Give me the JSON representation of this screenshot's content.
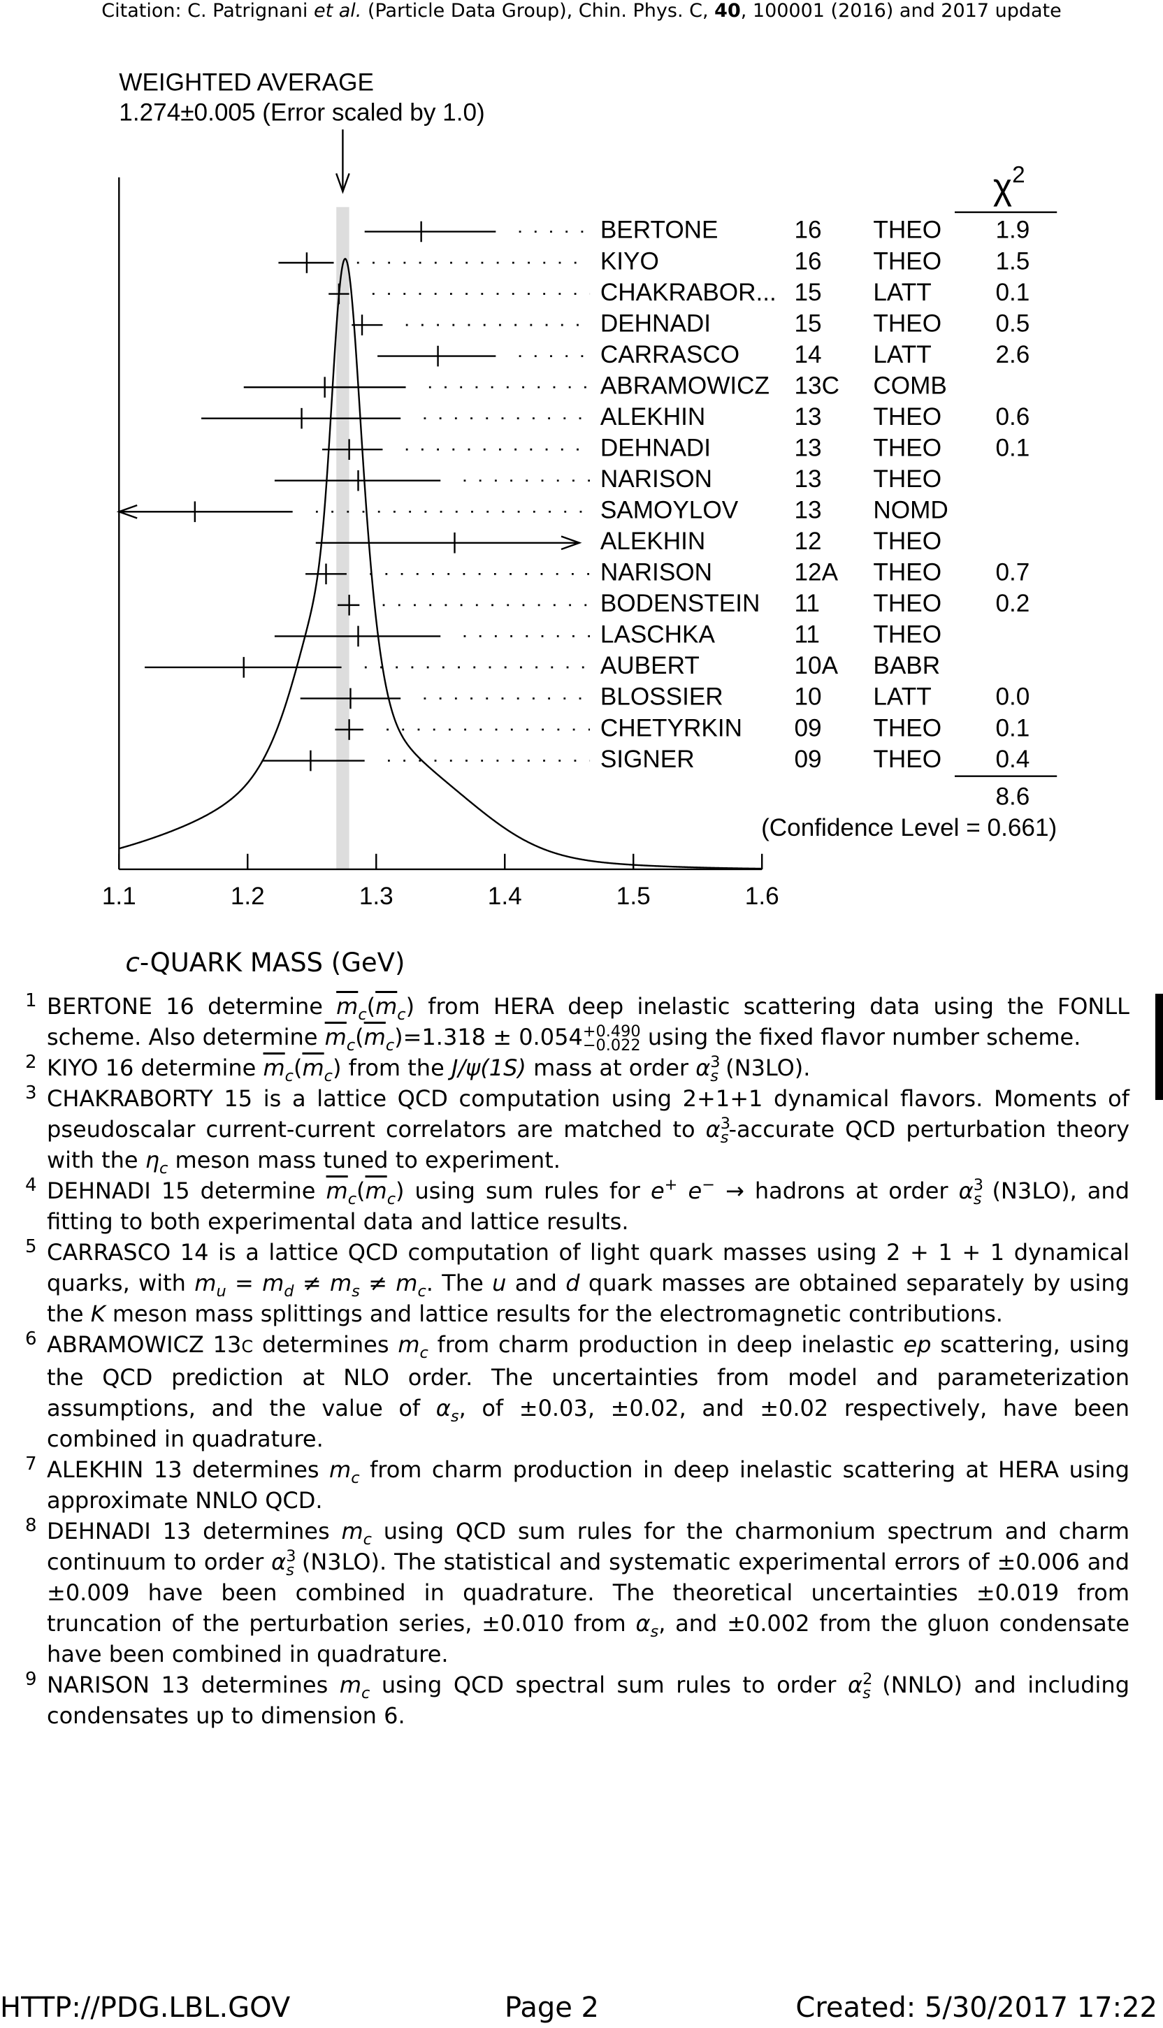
{
  "header": {
    "citation": [
      {
        "t": "Citation: C. Patrignani "
      },
      {
        "t": "et al.",
        "s": "i"
      },
      {
        "t": " (Particle Data Group), Chin. Phys. C, "
      },
      {
        "t": "40",
        "s": "b"
      },
      {
        "t": ", 100001 (2016) and 2017 update"
      }
    ]
  },
  "chart_data": {
    "type": "ideogram",
    "title": "WEIGHTED AVERAGE",
    "subtitle": "1.274±0.005 (Error scaled by 1.0)",
    "average": 1.274,
    "average_error": 0.005,
    "x_label_italic": "c",
    "x_label": "-QUARK MASS (GeV)",
    "xlim": [
      1.1,
      1.6
    ],
    "xticks": [
      1.1,
      1.2,
      1.3,
      1.4,
      1.5,
      1.6
    ],
    "chi2_symbol": "χ",
    "chi2_power": "2",
    "categories": [
      "BERTONE",
      "KIYO",
      "CHAKRABOR...",
      "DEHNADI",
      "CARRASCO",
      "ABRAMOWICZ",
      "ALEKHIN",
      "DEHNADI",
      "NARISON",
      "SAMOYLOV",
      "ALEKHIN",
      "NARISON",
      "BODENSTEIN",
      "LASCHKA",
      "AUBERT",
      "BLOSSIER",
      "CHETYRKIN",
      "SIGNER"
    ],
    "years": [
      "16",
      "16",
      "15",
      "15",
      "14",
      "13C",
      "13",
      "13",
      "13",
      "13",
      "12",
      "12A",
      "11",
      "11",
      "10A",
      "10",
      "09",
      "09"
    ],
    "methods": [
      "THEO",
      "THEO",
      "LATT",
      "THEO",
      "LATT",
      "COMB",
      "THEO",
      "THEO",
      "THEO",
      "NOMD",
      "THEO",
      "THEO",
      "THEO",
      "THEO",
      "BABR",
      "LATT",
      "THEO",
      "THEO"
    ],
    "chi2": [
      "1.9",
      "1.5",
      "0.1",
      "0.5",
      "2.6",
      null,
      "0.6",
      "0.1",
      null,
      null,
      null,
      "0.7",
      "0.2",
      null,
      null,
      "0.0",
      "0.1",
      "0.4"
    ],
    "chi2_total": "8.6",
    "confidence": "(Confidence Level = 0.661)",
    "values": [
      1.335,
      1.246,
      1.271,
      1.289,
      1.348,
      1.26,
      1.242,
      1.279,
      1.286,
      1.159,
      1.361,
      1.261,
      1.279,
      1.286,
      1.197,
      1.28,
      1.279,
      1.249
    ],
    "lower": [
      1.291,
      1.224,
      1.263,
      1.281,
      1.301,
      1.197,
      1.164,
      1.258,
      1.221,
      1.1,
      1.253,
      1.245,
      1.27,
      1.221,
      1.12,
      1.241,
      1.268,
      1.211
    ],
    "upper": [
      1.393,
      1.267,
      1.279,
      1.305,
      1.393,
      1.323,
      1.319,
      1.305,
      1.35,
      1.235,
      1.458,
      1.277,
      1.287,
      1.35,
      1.273,
      1.319,
      1.29,
      1.291
    ],
    "arrows": [
      null,
      null,
      null,
      null,
      null,
      null,
      null,
      null,
      null,
      "left",
      "right",
      null,
      null,
      null,
      null,
      null,
      null,
      null
    ],
    "band_color": "#dddddd"
  },
  "footnotes": [
    {
      "number": "1",
      "runs": [
        {
          "t": "BERTONE 16 determine "
        },
        {
          "t": "m",
          "s": "ol"
        },
        {
          "t": "c",
          "s": "sub"
        },
        {
          "t": "("
        },
        {
          "t": "m",
          "s": "ol"
        },
        {
          "t": "c",
          "s": "sub"
        },
        {
          "t": ") from HERA deep inelastic scattering data using the FONLL scheme.  Also determine "
        },
        {
          "t": "m",
          "s": "ol"
        },
        {
          "t": "c",
          "s": "sub"
        },
        {
          "t": "("
        },
        {
          "t": "m",
          "s": "ol"
        },
        {
          "t": "c",
          "s": "sub"
        },
        {
          "t": ")=1.318 ± 0.054"
        },
        {
          "t": "+0.490",
          "s": "supz"
        },
        {
          "t": "−0.022",
          "s": "nsub"
        },
        {
          "t": " using the fixed flavor number scheme."
        }
      ]
    },
    {
      "number": "2",
      "runs": [
        {
          "t": "KIYO 16 determine "
        },
        {
          "t": "m",
          "s": "ol"
        },
        {
          "t": "c",
          "s": "sub"
        },
        {
          "t": "("
        },
        {
          "t": "m",
          "s": "ol"
        },
        {
          "t": "c",
          "s": "sub"
        },
        {
          "t": ") from the "
        },
        {
          "t": "J/ψ(1S)",
          "s": "i"
        },
        {
          "t": " mass at order "
        },
        {
          "t": "α",
          "s": "i"
        },
        {
          "t": "3",
          "s": "supz"
        },
        {
          "t": "s",
          "s": "sub"
        },
        {
          "t": " (N3LO)."
        }
      ]
    },
    {
      "number": "3",
      "runs": [
        {
          "t": "CHAKRABORTY 15 is a lattice QCD computation using 2+1+1 dynamical flavors. Moments of pseudoscalar current-current correlators are matched to "
        },
        {
          "t": "α",
          "s": "i"
        },
        {
          "t": "3",
          "s": "supz"
        },
        {
          "t": "s",
          "s": "sub"
        },
        {
          "t": "-accurate QCD perturbation theory with the "
        },
        {
          "t": "η",
          "s": "i"
        },
        {
          "t": "c",
          "s": "sub"
        },
        {
          "t": " meson mass tuned to experiment."
        }
      ]
    },
    {
      "number": "4",
      "runs": [
        {
          "t": "DEHNADI 15 determine "
        },
        {
          "t": "m",
          "s": "ol"
        },
        {
          "t": "c",
          "s": "sub"
        },
        {
          "t": "("
        },
        {
          "t": "m",
          "s": "ol"
        },
        {
          "t": "c",
          "s": "sub"
        },
        {
          "t": ") using sum rules for "
        },
        {
          "t": "e",
          "s": "i"
        },
        {
          "t": "+",
          "s": "sup"
        },
        {
          "t": " e",
          "s": "i"
        },
        {
          "t": "−",
          "s": "sup"
        },
        {
          "t": " → hadrons at order "
        },
        {
          "t": "α",
          "s": "i"
        },
        {
          "t": "3",
          "s": "supz"
        },
        {
          "t": "s",
          "s": "sub"
        },
        {
          "t": " (N3LO), and fitting to both experimental data and lattice results."
        }
      ]
    },
    {
      "number": "5",
      "runs": [
        {
          "t": "CARRASCO 14 is a lattice QCD computation of light quark masses using 2 + 1 + 1 dynamical quarks, with "
        },
        {
          "t": "m",
          "s": "i"
        },
        {
          "t": "u",
          "s": "sub"
        },
        {
          "t": " = "
        },
        {
          "t": "m",
          "s": "i"
        },
        {
          "t": "d",
          "s": "sub"
        },
        {
          "t": " ≠ "
        },
        {
          "t": "m",
          "s": "i"
        },
        {
          "t": "s",
          "s": "sub"
        },
        {
          "t": " ≠ "
        },
        {
          "t": "m",
          "s": "i"
        },
        {
          "t": "c",
          "s": "sub"
        },
        {
          "t": ". The "
        },
        {
          "t": "u",
          "s": "i"
        },
        {
          "t": " and "
        },
        {
          "t": "d",
          "s": "i"
        },
        {
          "t": " quark masses are obtained separately by using the "
        },
        {
          "t": "K",
          "s": "i"
        },
        {
          "t": " meson mass splittings and lattice results for the electromagnetic contributions."
        }
      ]
    },
    {
      "number": "6",
      "runs": [
        {
          "t": "ABRAMOWICZ 13"
        },
        {
          "t": "C",
          "s": "sc"
        },
        {
          "t": " determines "
        },
        {
          "t": "m",
          "s": "i"
        },
        {
          "t": "c",
          "s": "sub"
        },
        {
          "t": " from charm production in deep inelastic "
        },
        {
          "t": "ep",
          "s": "i"
        },
        {
          "t": " scattering, using the QCD prediction at NLO order. The uncertainties from model and parameterization assumptions, and the value of "
        },
        {
          "t": "α",
          "s": "i"
        },
        {
          "t": "s",
          "s": "sub"
        },
        {
          "t": ", of ±0.03, ±0.02, and ±0.02 respectively, have been combined in quadrature."
        }
      ]
    },
    {
      "number": "7",
      "runs": [
        {
          "t": "ALEKHIN 13 determines "
        },
        {
          "t": "m",
          "s": "i"
        },
        {
          "t": "c",
          "s": "sub"
        },
        {
          "t": " from charm production in deep inelastic scattering at HERA using approximate NNLO QCD."
        }
      ]
    },
    {
      "number": "8",
      "runs": [
        {
          "t": "DEHNADI 13 determines "
        },
        {
          "t": "m",
          "s": "i"
        },
        {
          "t": "c",
          "s": "sub"
        },
        {
          "t": " using QCD sum rules for the charmonium spectrum and charm continuum to order "
        },
        {
          "t": "α",
          "s": "i"
        },
        {
          "t": "3",
          "s": "supz"
        },
        {
          "t": "s",
          "s": "sub"
        },
        {
          "t": " (N3LO). The statistical and systematic experimental errors of ±0.006 and ±0.009 have been combined in quadrature. The theoretical uncertainties ±0.019 from truncation of the perturbation series, ±0.010 from "
        },
        {
          "t": "α",
          "s": "i"
        },
        {
          "t": "s",
          "s": "sub"
        },
        {
          "t": ", and ±0.002 from the gluon condensate have been combined in quadrature."
        }
      ]
    },
    {
      "number": "9",
      "runs": [
        {
          "t": "NARISON 13 determines "
        },
        {
          "t": "m",
          "s": "i"
        },
        {
          "t": "c",
          "s": "sub"
        },
        {
          "t": " using QCD spectral sum rules to order "
        },
        {
          "t": "α",
          "s": "i"
        },
        {
          "t": "2",
          "s": "supz"
        },
        {
          "t": "s",
          "s": "sub"
        },
        {
          "t": " (NNLO) and including condensates up to dimension 6."
        }
      ]
    }
  ],
  "footer": {
    "url": "HTTP://PDG.LBL.GOV",
    "page": "Page 2",
    "created": "Created: 5/30/2017 17:22"
  }
}
